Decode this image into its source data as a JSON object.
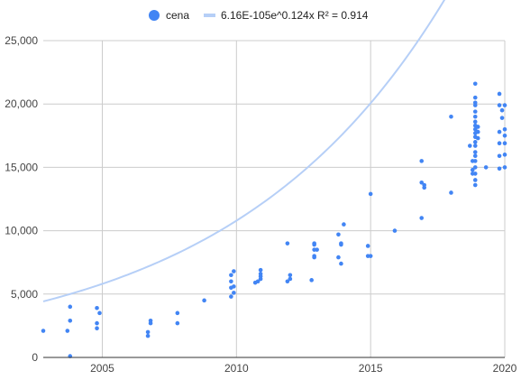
{
  "chart_data": {
    "type": "scatter",
    "title": "",
    "xlabel": "",
    "ylabel": "",
    "xlim": [
      2002.8,
      2020
    ],
    "ylim": [
      0,
      25000
    ],
    "x_ticks": [
      2005,
      2010,
      2015,
      2020
    ],
    "x_tick_labels": [
      "2005",
      "2010",
      "2015",
      "2020"
    ],
    "y_ticks": [
      0,
      5000,
      10000,
      15000,
      20000,
      25000
    ],
    "y_tick_labels": [
      "0",
      "5,000",
      "10,000",
      "15,000",
      "20,000",
      "25,000"
    ],
    "grid": true,
    "legend_position": "top",
    "colors": {
      "points": "#4285f4",
      "trendline": "#b6cff7"
    },
    "legend": {
      "series_label": "cena",
      "trendline_label": "6.16E-105e^0.124x R² = 0.914"
    },
    "trendline": {
      "type": "exponential",
      "a": 6.16e-105,
      "b": 0.124,
      "r2": 0.914
    },
    "series": [
      {
        "name": "cena",
        "points": [
          [
            2002.8,
            2100
          ],
          [
            2003.7,
            2100
          ],
          [
            2003.8,
            4000
          ],
          [
            2003.8,
            2900
          ],
          [
            2003.8,
            100
          ],
          [
            2004.8,
            3900
          ],
          [
            2004.8,
            2700
          ],
          [
            2004.8,
            2300
          ],
          [
            2004.9,
            3500
          ],
          [
            2006.7,
            2000
          ],
          [
            2006.7,
            1700
          ],
          [
            2006.8,
            2900
          ],
          [
            2006.8,
            2700
          ],
          [
            2007.8,
            3500
          ],
          [
            2007.8,
            2700
          ],
          [
            2008.8,
            4500
          ],
          [
            2009.8,
            6500
          ],
          [
            2009.8,
            6000
          ],
          [
            2009.8,
            5500
          ],
          [
            2009.8,
            4800
          ],
          [
            2009.9,
            6800
          ],
          [
            2009.9,
            5600
          ],
          [
            2009.9,
            5100
          ],
          [
            2010.7,
            5900
          ],
          [
            2010.8,
            6000
          ],
          [
            2010.9,
            6900
          ],
          [
            2010.9,
            6600
          ],
          [
            2010.9,
            6400
          ],
          [
            2010.9,
            6200
          ],
          [
            2011.9,
            9000
          ],
          [
            2011.9,
            6000
          ],
          [
            2012.0,
            6500
          ],
          [
            2012.0,
            6200
          ],
          [
            2012.8,
            6100
          ],
          [
            2012.9,
            9000
          ],
          [
            2012.9,
            8900
          ],
          [
            2012.9,
            8500
          ],
          [
            2012.9,
            8000
          ],
          [
            2012.9,
            7900
          ],
          [
            2013.0,
            8500
          ],
          [
            2013.8,
            7900
          ],
          [
            2013.8,
            9700
          ],
          [
            2013.9,
            9000
          ],
          [
            2013.9,
            8900
          ],
          [
            2013.9,
            7400
          ],
          [
            2014.0,
            10500
          ],
          [
            2014.9,
            8800
          ],
          [
            2014.9,
            8000
          ],
          [
            2015.0,
            12900
          ],
          [
            2015.0,
            8000
          ],
          [
            2015.9,
            10000
          ],
          [
            2016.9,
            15500
          ],
          [
            2016.9,
            13800
          ],
          [
            2016.9,
            11000
          ],
          [
            2017.0,
            13600
          ],
          [
            2017.0,
            13400
          ],
          [
            2018.0,
            19000
          ],
          [
            2018.0,
            13000
          ],
          [
            2018.7,
            16700
          ],
          [
            2018.8,
            15500
          ],
          [
            2018.8,
            14800
          ],
          [
            2018.8,
            14500
          ],
          [
            2018.9,
            21600
          ],
          [
            2018.9,
            20500
          ],
          [
            2018.9,
            20100
          ],
          [
            2018.9,
            19900
          ],
          [
            2018.9,
            19400
          ],
          [
            2018.9,
            19000
          ],
          [
            2018.9,
            18600
          ],
          [
            2018.9,
            18300
          ],
          [
            2018.9,
            18000
          ],
          [
            2018.9,
            17700
          ],
          [
            2018.9,
            17400
          ],
          [
            2018.9,
            17000
          ],
          [
            2018.9,
            16700
          ],
          [
            2018.9,
            16200
          ],
          [
            2018.9,
            15900
          ],
          [
            2018.9,
            15500
          ],
          [
            2018.9,
            15000
          ],
          [
            2018.9,
            14500
          ],
          [
            2018.9,
            14000
          ],
          [
            2018.9,
            13600
          ],
          [
            2019.0,
            18200
          ],
          [
            2019.0,
            17800
          ],
          [
            2019.0,
            17300
          ],
          [
            2019.3,
            15000
          ],
          [
            2019.8,
            20800
          ],
          [
            2019.8,
            19900
          ],
          [
            2019.8,
            17800
          ],
          [
            2019.8,
            16900
          ],
          [
            2019.8,
            15900
          ],
          [
            2019.8,
            14900
          ],
          [
            2019.9,
            19500
          ],
          [
            2019.9,
            18900
          ],
          [
            2020.0,
            19900
          ],
          [
            2020.0,
            18000
          ],
          [
            2020.0,
            17500
          ],
          [
            2020.0,
            16900
          ],
          [
            2020.0,
            16000
          ],
          [
            2020.0,
            15000
          ]
        ]
      }
    ]
  }
}
